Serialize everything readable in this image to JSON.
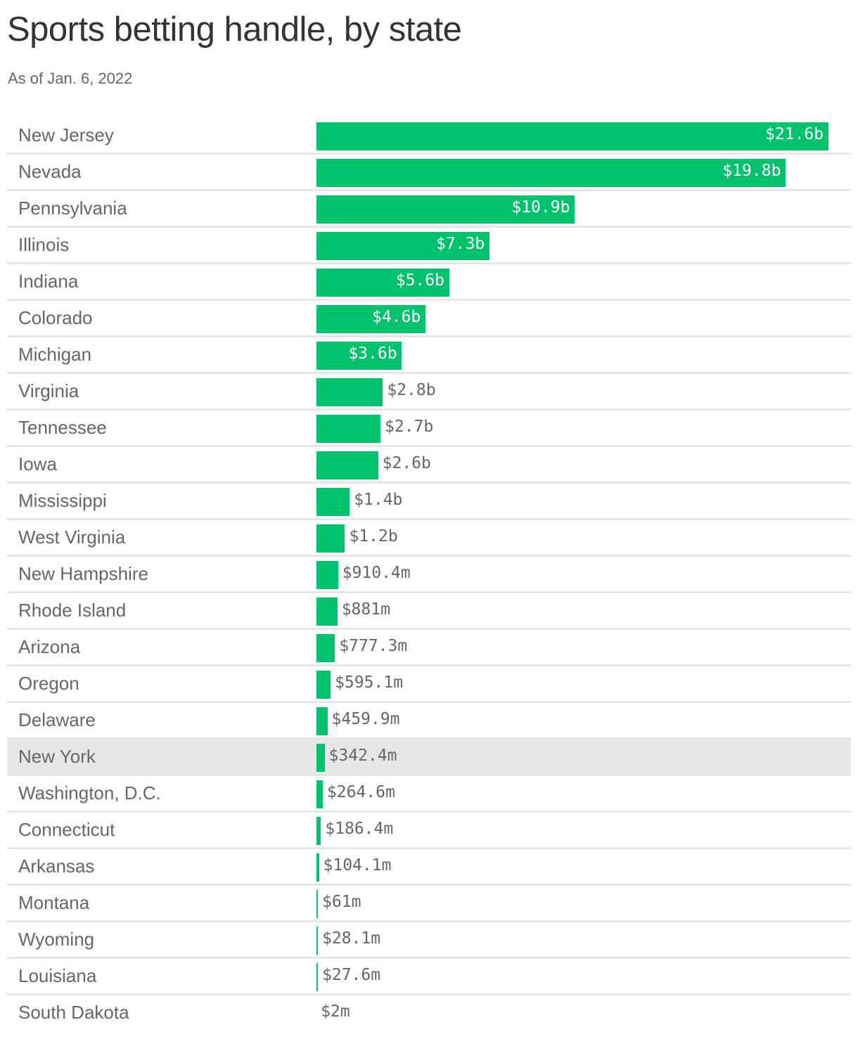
{
  "chart_data": {
    "type": "bar",
    "orientation": "horizontal",
    "title": "Sports betting handle, by state",
    "subtitle": "As of Jan. 6, 2022",
    "unit": "billions USD",
    "highlight": "New York",
    "color": "#00c26d",
    "highlight_bg": "#e6e7e8",
    "categories": [
      "New Jersey",
      "Nevada",
      "Pennsylvania",
      "Illinois",
      "Indiana",
      "Colorado",
      "Michigan",
      "Virginia",
      "Tennessee",
      "Iowa",
      "Mississippi",
      "West Virginia",
      "New Hampshire",
      "Rhode Island",
      "Arizona",
      "Oregon",
      "Delaware",
      "New York",
      "Washington, D.C.",
      "Connecticut",
      "Arkansas",
      "Montana",
      "Wyoming",
      "Louisiana",
      "South Dakota"
    ],
    "values": [
      21.6,
      19.8,
      10.9,
      7.3,
      5.6,
      4.6,
      3.6,
      2.8,
      2.7,
      2.6,
      1.4,
      1.2,
      0.9104,
      0.881,
      0.7773,
      0.5951,
      0.4599,
      0.3424,
      0.2646,
      0.1864,
      0.1041,
      0.061,
      0.0281,
      0.0276,
      0.002
    ],
    "labels": [
      "$21.6b",
      "$19.8b",
      "$10.9b",
      "$7.3b",
      "$5.6b",
      "$4.6b",
      "$3.6b",
      "$2.8b",
      "$2.7b",
      "$2.6b",
      "$1.4b",
      "$1.2b",
      "$910.4m",
      "$881m",
      "$777.3m",
      "$595.1m",
      "$459.9m",
      "$342.4m",
      "$264.6m",
      "$186.4m",
      "$104.1m",
      "$61m",
      "$28.1m",
      "$27.6m",
      "$2m"
    ],
    "xlim": [
      0,
      21.6
    ]
  }
}
